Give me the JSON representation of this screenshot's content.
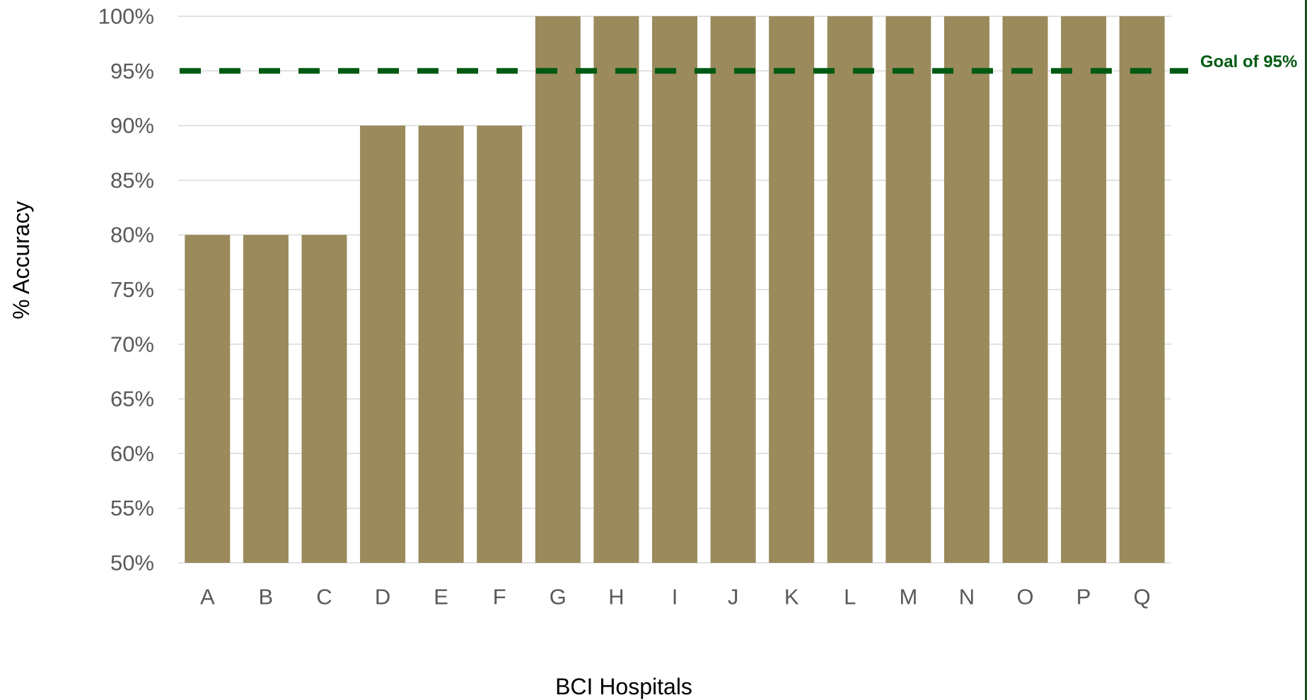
{
  "chart_data": {
    "type": "bar",
    "categories": [
      "A",
      "B",
      "C",
      "D",
      "E",
      "F",
      "G",
      "H",
      "I",
      "J",
      "K",
      "L",
      "M",
      "N",
      "O",
      "P",
      "Q"
    ],
    "values": [
      80,
      80,
      80,
      90,
      90,
      90,
      100,
      100,
      100,
      100,
      100,
      100,
      100,
      100,
      100,
      100,
      100
    ],
    "ylim": [
      50,
      100
    ],
    "ytick_step": 5,
    "ytick_suffix": "%",
    "xlabel": "BCI Hospitals",
    "ylabel": "% Accuracy",
    "grid": true,
    "reference_line": {
      "value": 95,
      "label": "Goal of 95%",
      "style": "dashed"
    }
  },
  "colors": {
    "bar": "#9A8A5C",
    "goal_line": "#005A12",
    "gridline": "#D9D9D9",
    "right_edge": "#1F4E1F"
  }
}
